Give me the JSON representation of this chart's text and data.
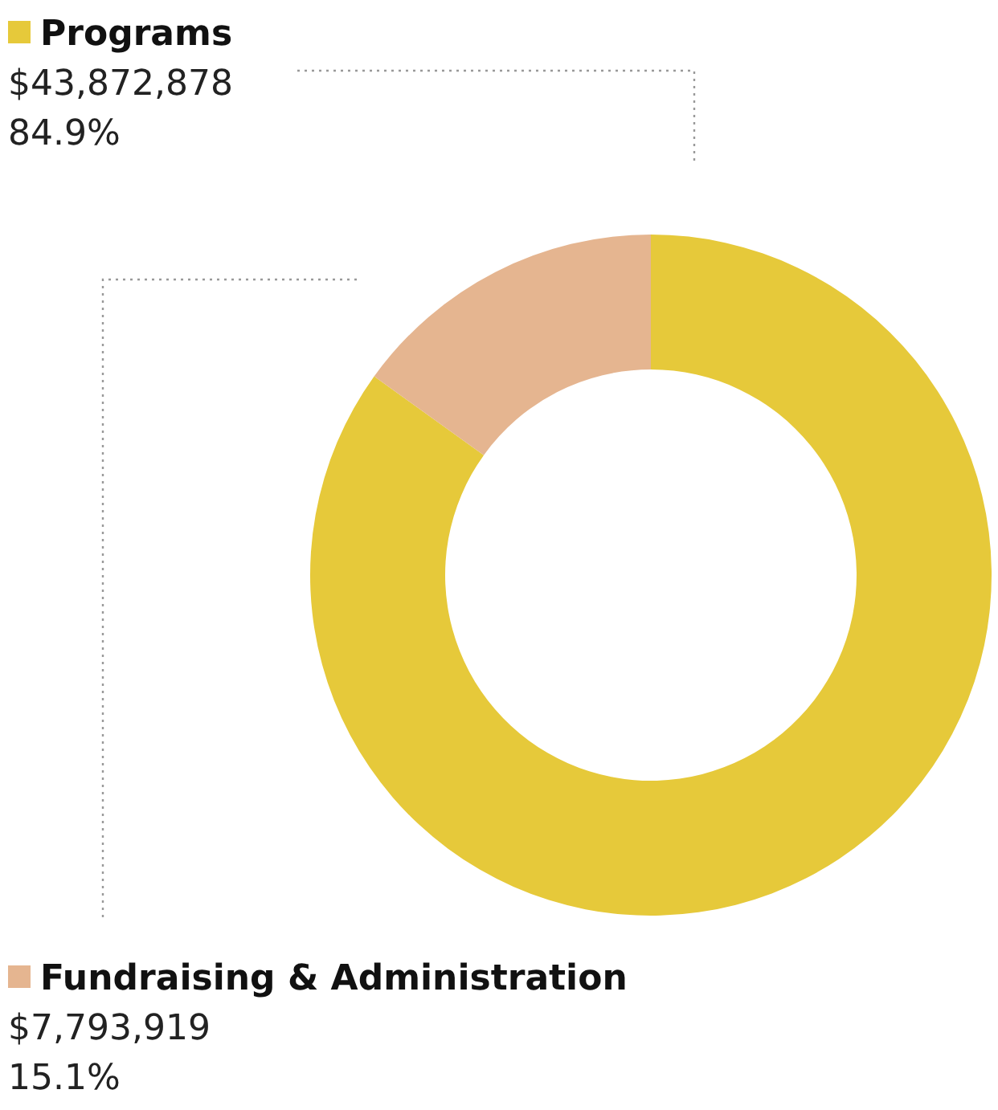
{
  "chart_data": {
    "type": "donut",
    "categories": [
      "Programs",
      "Fundraising & Administration"
    ],
    "values": [
      43872878,
      7793919
    ],
    "colors": [
      "#e6c93a",
      "#e5b590"
    ],
    "value_labels": [
      "$43,872,878\n84.9%",
      "$7,793,919\n15.1%"
    ],
    "legend": "left"
  }
}
